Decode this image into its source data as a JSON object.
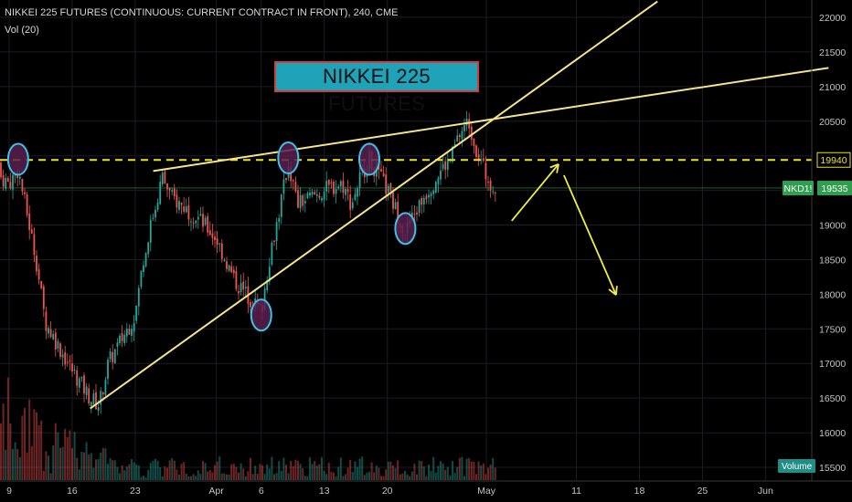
{
  "header": {
    "symbol_line": "NIKKEI 225 FUTURES (CONTINUOUS: CURRENT CONTRACT IN FRONT), 240, CME",
    "indicator_line": "Vol (20)"
  },
  "annotation_title": "NIKKEI 225  FUTURES",
  "colors": {
    "background": "#000000",
    "up_candle": "#26a69a",
    "down_candle": "#ef5350",
    "trendline": "#f4e58c",
    "dashed_level": "#f0e020",
    "arrow": "#f0ef40",
    "circle_stroke": "#39c4e8",
    "circle_fill": "#5a1f4f",
    "last_price_tag": "#2f9e4f"
  },
  "chart_data": {
    "type": "candlestick",
    "title": "",
    "instrument": "NIKKEI 225 FUTURES",
    "interval": "240",
    "exchange": "CME",
    "x_tick_labels": [
      "9",
      "16",
      "23",
      "Apr",
      "6",
      "13",
      "20",
      "May",
      "11",
      "18",
      "25",
      "Jun"
    ],
    "y_tick_labels": [
      "22000",
      "21500",
      "21000",
      "20500",
      "20000",
      "19500",
      "19000",
      "18500",
      "18000",
      "17500",
      "17000",
      "16500",
      "16000",
      "15500"
    ],
    "ylim": [
      15450,
      22250
    ],
    "grid": true,
    "horizontal_level": {
      "value": 19940,
      "label": "19940",
      "style": "dashed"
    },
    "last_price": {
      "value": 19535,
      "symbol": "NKD1!"
    },
    "volume_label": "Volume",
    "price_path": [
      {
        "date": "Mar 06",
        "price": 19900
      },
      {
        "date": "Mar 09",
        "price": 19600
      },
      {
        "date": "Mar 10",
        "price": 19800
      },
      {
        "date": "Mar 12",
        "price": 18500
      },
      {
        "date": "Mar 13",
        "price": 17600
      },
      {
        "date": "Mar 16",
        "price": 16900
      },
      {
        "date": "Mar 18",
        "price": 16500
      },
      {
        "date": "Mar 19",
        "price": 16400
      },
      {
        "date": "Mar 20",
        "price": 17000
      },
      {
        "date": "Mar 23",
        "price": 17700
      },
      {
        "date": "Mar 24",
        "price": 18600
      },
      {
        "date": "Mar 26",
        "price": 19700
      },
      {
        "date": "Mar 27",
        "price": 19400
      },
      {
        "date": "Mar 30",
        "price": 19100
      },
      {
        "date": "Apr 01",
        "price": 18800
      },
      {
        "date": "Apr 03",
        "price": 18200
      },
      {
        "date": "Apr 06",
        "price": 17750
      },
      {
        "date": "Apr 07",
        "price": 18600
      },
      {
        "date": "Apr 08",
        "price": 19200
      },
      {
        "date": "Apr 09",
        "price": 19900
      },
      {
        "date": "Apr 10",
        "price": 19300
      },
      {
        "date": "Apr 13",
        "price": 19500
      },
      {
        "date": "Apr 15",
        "price": 19600
      },
      {
        "date": "Apr 16",
        "price": 19300
      },
      {
        "date": "Apr 17",
        "price": 19700
      },
      {
        "date": "Apr 18",
        "price": 19950
      },
      {
        "date": "Apr 20",
        "price": 19500
      },
      {
        "date": "Apr 21",
        "price": 19200
      },
      {
        "date": "Apr 22",
        "price": 18900
      },
      {
        "date": "Apr 24",
        "price": 19400
      },
      {
        "date": "Apr 26",
        "price": 19800
      },
      {
        "date": "Apr 27",
        "price": 19950
      },
      {
        "date": "Apr 28",
        "price": 20300
      },
      {
        "date": "Apr 29",
        "price": 20500
      },
      {
        "date": "Apr 30",
        "price": 20050
      },
      {
        "date": "May 01",
        "price": 19700
      },
      {
        "date": "May 02",
        "price": 19535
      }
    ],
    "trendlines": [
      {
        "name": "lower-support",
        "from": {
          "date": "Mar 18",
          "price": 16350
        },
        "to": {
          "date": "May 20",
          "price": 22230
        }
      },
      {
        "name": "upper-resistance",
        "from": {
          "date": "Mar 25",
          "price": 19780
        },
        "to": {
          "date": "Jun 08",
          "price": 21270
        }
      }
    ],
    "circled_points": [
      {
        "date": "Mar 10",
        "price": 19950
      },
      {
        "date": "Apr 06",
        "price": 17700
      },
      {
        "date": "Apr 09",
        "price": 19970
      },
      {
        "date": "Apr 18",
        "price": 19950
      },
      {
        "date": "Apr 22",
        "price": 18950
      }
    ]
  }
}
